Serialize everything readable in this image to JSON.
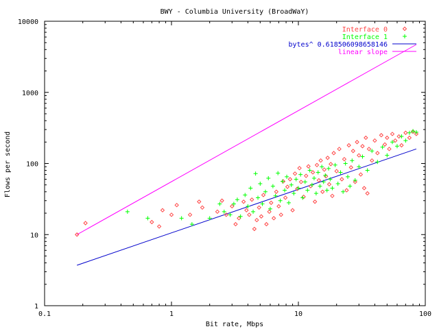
{
  "chart_data": {
    "type": "scatter",
    "title": "BWY - Columbia University (BroadWaY)",
    "xlabel": "Bit rate, Mbps",
    "ylabel": "Flows per second",
    "x_scale": "log",
    "y_scale": "log",
    "xlim": [
      0.1,
      100
    ],
    "ylim": [
      1,
      10000
    ],
    "x_ticks": [
      {
        "value": 0.1,
        "label": "0.1"
      },
      {
        "value": 1,
        "label": "1"
      },
      {
        "value": 10,
        "label": "10"
      },
      {
        "value": 100,
        "label": "100"
      }
    ],
    "y_ticks": [
      {
        "value": 1,
        "label": "1"
      },
      {
        "value": 10,
        "label": "10"
      },
      {
        "value": 100,
        "label": "100"
      },
      {
        "value": 1000,
        "label": "1000"
      },
      {
        "value": 10000,
        "label": "10000"
      }
    ],
    "grid": false,
    "legend_position": "top-right",
    "series": [
      {
        "name": "Interface 0",
        "kind": "points",
        "marker": "diamond",
        "color": "#ff4444",
        "points": [
          [
            0.18,
            10
          ],
          [
            0.21,
            14.5
          ],
          [
            0.7,
            15
          ],
          [
            0.8,
            13
          ],
          [
            0.85,
            22
          ],
          [
            1.0,
            19
          ],
          [
            1.1,
            26
          ],
          [
            1.4,
            19
          ],
          [
            1.65,
            29
          ],
          [
            1.75,
            24
          ],
          [
            2.3,
            21
          ],
          [
            2.5,
            30
          ],
          [
            2.7,
            19
          ],
          [
            3.0,
            25
          ],
          [
            3.2,
            14
          ],
          [
            3.4,
            17
          ],
          [
            3.7,
            29
          ],
          [
            3.9,
            22
          ],
          [
            4.1,
            19
          ],
          [
            4.3,
            31
          ],
          [
            4.5,
            12
          ],
          [
            4.7,
            16
          ],
          [
            4.9,
            24
          ],
          [
            5.1,
            18
          ],
          [
            5.3,
            36
          ],
          [
            5.6,
            14
          ],
          [
            5.9,
            21
          ],
          [
            6.1,
            28
          ],
          [
            6.4,
            17
          ],
          [
            6.7,
            40
          ],
          [
            7.0,
            25
          ],
          [
            7.3,
            19
          ],
          [
            7.6,
            56
          ],
          [
            7.9,
            33
          ],
          [
            8.2,
            47
          ],
          [
            8.6,
            60
          ],
          [
            9.0,
            22
          ],
          [
            9.4,
            72
          ],
          [
            9.8,
            44
          ],
          [
            10.2,
            86
          ],
          [
            10.5,
            55
          ],
          [
            11,
            34
          ],
          [
            11.5,
            67
          ],
          [
            12,
            91
          ],
          [
            12.5,
            48
          ],
          [
            13,
            75
          ],
          [
            13.5,
            29
          ],
          [
            14,
            95
          ],
          [
            14.5,
            58
          ],
          [
            15,
            110
          ],
          [
            15.5,
            40
          ],
          [
            16,
            82
          ],
          [
            16.5,
            66
          ],
          [
            17,
            120
          ],
          [
            17.5,
            51
          ],
          [
            18,
            98
          ],
          [
            18.5,
            35
          ],
          [
            19,
            140
          ],
          [
            20,
            78
          ],
          [
            21,
            160
          ],
          [
            22,
            60
          ],
          [
            23,
            115
          ],
          [
            24,
            42
          ],
          [
            25,
            180
          ],
          [
            26,
            88
          ],
          [
            27,
            150
          ],
          [
            28,
            55
          ],
          [
            29,
            200
          ],
          [
            30,
            130
          ],
          [
            31,
            70
          ],
          [
            32,
            175
          ],
          [
            33,
            45
          ],
          [
            34,
            230
          ],
          [
            35,
            38
          ],
          [
            36,
            160
          ],
          [
            38,
            110
          ],
          [
            40,
            210
          ],
          [
            42,
            140
          ],
          [
            45,
            250
          ],
          [
            48,
            185
          ],
          [
            50,
            230
          ],
          [
            52,
            160
          ],
          [
            55,
            260
          ],
          [
            58,
            210
          ],
          [
            62,
            240
          ],
          [
            65,
            180
          ],
          [
            70,
            270
          ],
          [
            75,
            230
          ],
          [
            80,
            280
          ],
          [
            85,
            260
          ]
        ]
      },
      {
        "name": "Interface 1",
        "kind": "points",
        "marker": "plus",
        "color": "#00ff00",
        "points": [
          [
            0.45,
            21
          ],
          [
            0.65,
            17
          ],
          [
            1.2,
            17
          ],
          [
            1.45,
            14
          ],
          [
            2.0,
            17
          ],
          [
            2.4,
            27
          ],
          [
            2.6,
            21
          ],
          [
            2.9,
            19
          ],
          [
            3.1,
            27
          ],
          [
            3.3,
            31
          ],
          [
            3.5,
            18
          ],
          [
            3.8,
            36
          ],
          [
            4.0,
            25
          ],
          [
            4.2,
            45
          ],
          [
            4.4,
            21
          ],
          [
            4.6,
            72
          ],
          [
            4.8,
            33
          ],
          [
            5.0,
            52
          ],
          [
            5.2,
            27
          ],
          [
            5.5,
            40
          ],
          [
            5.8,
            62
          ],
          [
            6.0,
            23
          ],
          [
            6.3,
            48
          ],
          [
            6.6,
            35
          ],
          [
            6.9,
            73
          ],
          [
            7.2,
            30
          ],
          [
            7.5,
            56
          ],
          [
            7.8,
            42
          ],
          [
            8.1,
            65
          ],
          [
            8.4,
            28
          ],
          [
            8.8,
            50
          ],
          [
            9.2,
            38
          ],
          [
            9.6,
            60
          ],
          [
            10,
            45
          ],
          [
            10.4,
            70
          ],
          [
            10.8,
            33
          ],
          [
            11.3,
            55
          ],
          [
            11.8,
            42
          ],
          [
            12.3,
            80
          ],
          [
            12.8,
            50
          ],
          [
            13.3,
            62
          ],
          [
            13.8,
            38
          ],
          [
            14.3,
            75
          ],
          [
            14.8,
            48
          ],
          [
            15.3,
            90
          ],
          [
            15.8,
            55
          ],
          [
            16.3,
            68
          ],
          [
            16.8,
            42
          ],
          [
            17.3,
            85
          ],
          [
            17.8,
            60
          ],
          [
            18.5,
            45
          ],
          [
            19.5,
            95
          ],
          [
            20.5,
            52
          ],
          [
            21.5,
            75
          ],
          [
            22.5,
            40
          ],
          [
            23.5,
            100
          ],
          [
            24.5,
            65
          ],
          [
            25.5,
            48
          ],
          [
            26.5,
            110
          ],
          [
            28,
            58
          ],
          [
            30,
            90
          ],
          [
            32,
            125
          ],
          [
            35,
            80
          ],
          [
            38,
            150
          ],
          [
            42,
            105
          ],
          [
            46,
            170
          ],
          [
            50,
            130
          ],
          [
            55,
            200
          ],
          [
            60,
            175
          ],
          [
            65,
            240
          ],
          [
            70,
            210
          ],
          [
            75,
            270
          ],
          [
            80,
            285
          ],
          [
            85,
            275
          ]
        ]
      },
      {
        "name": "bytes^ 0.618506098658146",
        "kind": "line",
        "color": "#0000cc",
        "points": [
          [
            0.18,
            3.7
          ],
          [
            85,
            160
          ]
        ]
      },
      {
        "name": "linear slope",
        "kind": "line",
        "color": "#ff00ff",
        "points": [
          [
            0.18,
            10
          ],
          [
            85,
            4700
          ]
        ]
      }
    ]
  }
}
